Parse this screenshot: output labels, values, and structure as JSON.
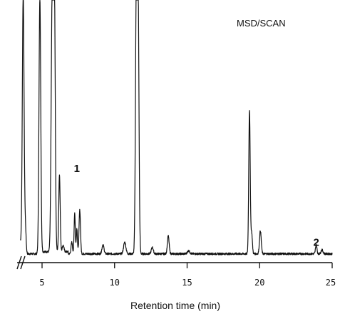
{
  "chart_data": {
    "type": "line",
    "title": "MSD/SCAN",
    "xlabel": "Retention time (min)",
    "ylabel": "",
    "xlim": [
      3.5,
      25
    ],
    "ylim": [
      0,
      100
    ],
    "axis_break": true,
    "x_ticks": [
      5,
      10,
      15,
      20,
      25
    ],
    "annotations": [
      {
        "text": "1",
        "x": 7.4,
        "y": 32
      },
      {
        "text": "2",
        "x": 23.9,
        "y": 3.2
      }
    ],
    "baseline": 1.2,
    "peaks": [
      {
        "x": 3.7,
        "h": 100,
        "w": 0.06
      },
      {
        "x": 3.85,
        "h": 10,
        "w": 0.05
      },
      {
        "x": 4.85,
        "h": 100,
        "w": 0.06
      },
      {
        "x": 5.7,
        "h": 100,
        "w": 0.07
      },
      {
        "x": 5.85,
        "h": 100,
        "w": 0.06
      },
      {
        "x": 6.2,
        "h": 30,
        "w": 0.05
      },
      {
        "x": 6.45,
        "h": 2.5,
        "w": 0.06
      },
      {
        "x": 7.05,
        "h": 4.5,
        "w": 0.05
      },
      {
        "x": 7.25,
        "h": 16,
        "w": 0.04
      },
      {
        "x": 7.4,
        "h": 10,
        "w": 0.04
      },
      {
        "x": 7.6,
        "h": 17,
        "w": 0.05
      },
      {
        "x": 9.2,
        "h": 3.5,
        "w": 0.07
      },
      {
        "x": 10.7,
        "h": 4.5,
        "w": 0.08
      },
      {
        "x": 11.5,
        "h": 100,
        "w": 0.06
      },
      {
        "x": 11.62,
        "h": 100,
        "w": 0.06
      },
      {
        "x": 12.6,
        "h": 2.5,
        "w": 0.07
      },
      {
        "x": 13.7,
        "h": 7,
        "w": 0.06
      },
      {
        "x": 15.1,
        "h": 1.2,
        "w": 0.08
      },
      {
        "x": 19.3,
        "h": 56,
        "w": 0.05
      },
      {
        "x": 19.45,
        "h": 8,
        "w": 0.05
      },
      {
        "x": 20.05,
        "h": 9,
        "w": 0.06
      },
      {
        "x": 23.9,
        "h": 3.5,
        "w": 0.05
      },
      {
        "x": 24.3,
        "h": 1.5,
        "w": 0.07
      }
    ]
  }
}
